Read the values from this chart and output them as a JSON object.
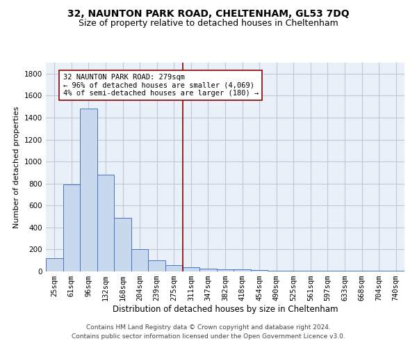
{
  "title1": "32, NAUNTON PARK ROAD, CHELTENHAM, GL53 7DQ",
  "title2": "Size of property relative to detached houses in Cheltenham",
  "xlabel": "Distribution of detached houses by size in Cheltenham",
  "ylabel": "Number of detached properties",
  "categories": [
    "25sqm",
    "61sqm",
    "96sqm",
    "132sqm",
    "168sqm",
    "204sqm",
    "239sqm",
    "275sqm",
    "311sqm",
    "347sqm",
    "382sqm",
    "418sqm",
    "454sqm",
    "490sqm",
    "525sqm",
    "561sqm",
    "597sqm",
    "633sqm",
    "668sqm",
    "704sqm",
    "740sqm"
  ],
  "values": [
    120,
    790,
    1480,
    880,
    490,
    200,
    100,
    60,
    35,
    25,
    20,
    20,
    10,
    5,
    5,
    5,
    5,
    5,
    5,
    5,
    5
  ],
  "bar_color": "#c9d9ed",
  "bar_edge_color": "#4472c4",
  "vline_x_index": 7.5,
  "vline_color": "#8b0000",
  "annotation_text": "32 NAUNTON PARK ROAD: 279sqm\n← 96% of detached houses are smaller (4,069)\n4% of semi-detached houses are larger (180) →",
  "annotation_box_color": "#ffffff",
  "annotation_box_edge_color": "#8b0000",
  "ylim": [
    0,
    1900
  ],
  "yticks": [
    0,
    200,
    400,
    600,
    800,
    1000,
    1200,
    1400,
    1600,
    1800
  ],
  "grid_color": "#c0c8d8",
  "background_color": "#eaf0f8",
  "footer_text": "Contains HM Land Registry data © Crown copyright and database right 2024.\nContains public sector information licensed under the Open Government Licence v3.0.",
  "title1_fontsize": 10,
  "title2_fontsize": 9,
  "xlabel_fontsize": 8.5,
  "ylabel_fontsize": 8,
  "tick_fontsize": 7.5,
  "annotation_fontsize": 7.5,
  "footer_fontsize": 6.5
}
